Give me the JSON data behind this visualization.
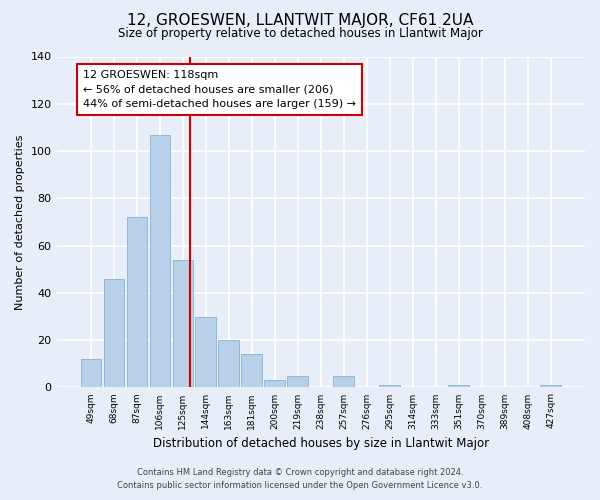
{
  "title": "12, GROESWEN, LLANTWIT MAJOR, CF61 2UA",
  "subtitle": "Size of property relative to detached houses in Llantwit Major",
  "xlabel": "Distribution of detached houses by size in Llantwit Major",
  "ylabel": "Number of detached properties",
  "bar_labels": [
    "49sqm",
    "68sqm",
    "87sqm",
    "106sqm",
    "125sqm",
    "144sqm",
    "163sqm",
    "181sqm",
    "200sqm",
    "219sqm",
    "238sqm",
    "257sqm",
    "276sqm",
    "295sqm",
    "314sqm",
    "333sqm",
    "351sqm",
    "370sqm",
    "389sqm",
    "408sqm",
    "427sqm"
  ],
  "bar_values": [
    12,
    46,
    72,
    107,
    54,
    30,
    20,
    14,
    3,
    5,
    0,
    5,
    0,
    1,
    0,
    0,
    1,
    0,
    0,
    0,
    1
  ],
  "bar_color": "#b8d0e8",
  "bar_edge_color": "#90b8d8",
  "vline_x_index": 4,
  "vline_color": "#cc0000",
  "annotation_title": "12 GROESWEN: 118sqm",
  "annotation_line1": "← 56% of detached houses are smaller (206)",
  "annotation_line2": "44% of semi-detached houses are larger (159) →",
  "annotation_box_color": "#ffffff",
  "annotation_box_edge": "#cc0000",
  "ylim": [
    0,
    140
  ],
  "yticks": [
    0,
    20,
    40,
    60,
    80,
    100,
    120,
    140
  ],
  "footnote1": "Contains HM Land Registry data © Crown copyright and database right 2024.",
  "footnote2": "Contains public sector information licensed under the Open Government Licence v3.0.",
  "bg_color": "#e8eef8",
  "plot_bg_color": "#e8eef8",
  "title_fontsize": 11,
  "subtitle_fontsize": 9
}
